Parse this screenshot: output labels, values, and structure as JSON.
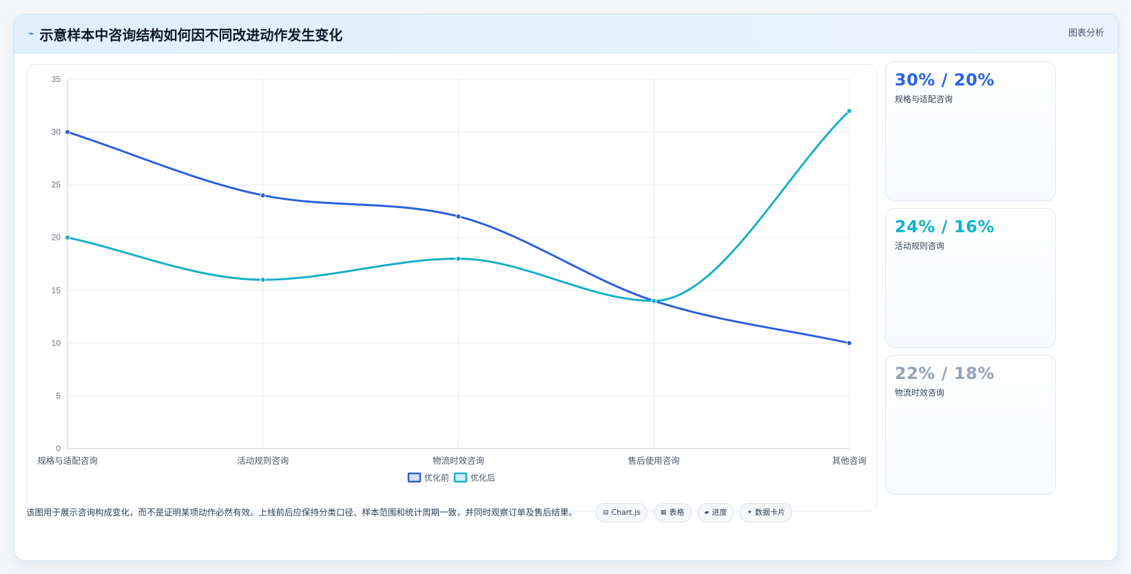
{
  "header": {
    "title": "示意样本中咨询结构如何因不同改进动作发生变化",
    "right_label": "图表分析"
  },
  "chart_data": {
    "type": "line",
    "categories": [
      "规格与适配咨询",
      "活动规则咨询",
      "物流时效咨询",
      "售后使用咨询",
      "其他咨询"
    ],
    "series": [
      {
        "name": "优化前",
        "values": [
          30,
          24,
          22,
          14,
          10
        ],
        "color": "#2b5fd9"
      },
      {
        "name": "优化后",
        "values": [
          20,
          16,
          18,
          14,
          32
        ],
        "color": "#15afc6"
      }
    ],
    "ylim": [
      0,
      35
    ],
    "yticks": [
      0,
      5,
      10,
      15,
      20,
      25,
      30,
      35
    ],
    "grid": true,
    "legend_position": "bottom"
  },
  "stats": [
    {
      "value": "30% / 20%",
      "label": "规格与适配咨询",
      "color": "#2563eb"
    },
    {
      "value": "24% / 16%",
      "label": "活动规则咨询",
      "color": "#0fb3c9"
    },
    {
      "value": "22% / 18%",
      "label": "物流时效咨询",
      "color": "#94a3b8"
    }
  ],
  "footer": {
    "note": "该图用于展示咨询构成变化，而不是证明某项动作必然有效。上线前后应保持分类口径、样本范围和统计周期一致，并同时观察订单及售后结果。",
    "chips": [
      {
        "icon": "chart-icon",
        "glyph": "▤",
        "label": "Chart.js"
      },
      {
        "icon": "table-icon",
        "glyph": "▦",
        "label": "表格"
      },
      {
        "icon": "progress-icon",
        "glyph": "▰",
        "label": "进度"
      },
      {
        "icon": "sparkle-icon",
        "glyph": "✦",
        "label": "数据卡片"
      }
    ]
  }
}
